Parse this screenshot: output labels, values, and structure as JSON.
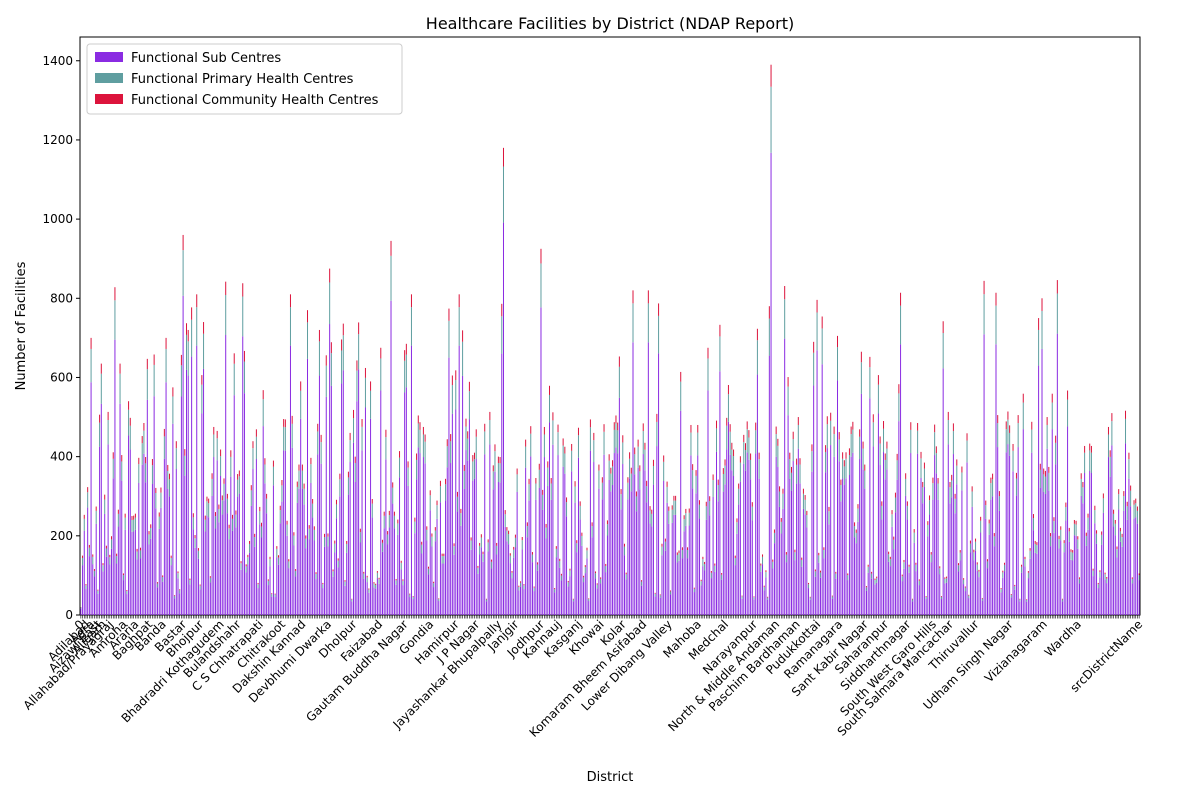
{
  "chart_data": {
    "type": "bar",
    "stacked": true,
    "title": "Healthcare Facilities by District (NDAP Report)",
    "xlabel": "District",
    "ylabel": "Number of Facilities",
    "ylim": [
      0,
      1460
    ],
    "yticks": [
      0,
      200,
      400,
      600,
      800,
      1000,
      1200,
      1400
    ],
    "grid": false,
    "legend_position": "top-left",
    "colors": {
      "sub_centres": "#8A2BE2",
      "phc": "#5F9EA0",
      "chc": "#DC143C"
    },
    "series": [
      {
        "name": "Functional Sub Centres",
        "color": "#8A2BE2"
      },
      {
        "name": "Functional Primary Health Centres",
        "color": "#5F9EA0"
      },
      {
        "name": "Functional Community Health Centres",
        "color": "#DC143C"
      }
    ],
    "category_count": 622,
    "visible_tick_labels": [
      {
        "index": 0,
        "label": "0"
      },
      {
        "index": 3,
        "label": "Adilabad"
      },
      {
        "index": 6,
        "label": "Agra"
      },
      {
        "index": 10,
        "label": "Aizawl East"
      },
      {
        "index": 13,
        "label": "Aligarh"
      },
      {
        "index": 17,
        "label": "Allahabad/Prayagraj"
      },
      {
        "index": 25,
        "label": "Amroha"
      },
      {
        "index": 32,
        "label": "Araria"
      },
      {
        "index": 40,
        "label": "Baghpat"
      },
      {
        "index": 48,
        "label": "Banda"
      },
      {
        "index": 60,
        "label": "Bastar"
      },
      {
        "index": 70,
        "label": "Bhojpur"
      },
      {
        "index": 82,
        "label": "Bhadradri Kothagudem"
      },
      {
        "index": 92,
        "label": "Bulandshahr"
      },
      {
        "index": 105,
        "label": "C S Chhatrapati"
      },
      {
        "index": 118,
        "label": "Chitrakoot"
      },
      {
        "index": 130,
        "label": "Dakshin Kannad"
      },
      {
        "index": 145,
        "label": "Devbhumi Dwarka"
      },
      {
        "index": 160,
        "label": "Dholpur"
      },
      {
        "index": 175,
        "label": "Faizabad"
      },
      {
        "index": 190,
        "label": "Gautam Buddha Nagar"
      },
      {
        "index": 205,
        "label": "Gondia"
      },
      {
        "index": 220,
        "label": "Hamirpur"
      },
      {
        "index": 232,
        "label": "J P Nagar"
      },
      {
        "index": 245,
        "label": "Jayashankar Bhupalpally"
      },
      {
        "index": 255,
        "label": "Janjgir"
      },
      {
        "index": 270,
        "label": "Jodhpur"
      },
      {
        "index": 280,
        "label": "Kannauj"
      },
      {
        "index": 292,
        "label": "Kasganj"
      },
      {
        "index": 305,
        "label": "Khowai"
      },
      {
        "index": 318,
        "label": "Kolar"
      },
      {
        "index": 330,
        "label": "Komaram Bheem Asifabad"
      },
      {
        "index": 345,
        "label": "Lower Dibang Valley"
      },
      {
        "index": 362,
        "label": "Mahoba"
      },
      {
        "index": 378,
        "label": "Medchal"
      },
      {
        "index": 395,
        "label": "Narayanpur"
      },
      {
        "index": 408,
        "label": "North & Middle Andaman"
      },
      {
        "index": 420,
        "label": "Paschim Bardhaman"
      },
      {
        "index": 432,
        "label": "Pudukkottai"
      },
      {
        "index": 445,
        "label": "Ramanagara"
      },
      {
        "index": 460,
        "label": "Sant Kabir Nagar"
      },
      {
        "index": 472,
        "label": "Saharanpur"
      },
      {
        "index": 485,
        "label": "Siddharthnagar"
      },
      {
        "index": 500,
        "label": "South West Garo Hills"
      },
      {
        "index": 510,
        "label": "South Salmara Mancachar"
      },
      {
        "index": 525,
        "label": "Thiruvallur"
      },
      {
        "index": 545,
        "label": "Udham Singh Nagar"
      },
      {
        "index": 565,
        "label": "Vizianagaram"
      },
      {
        "index": 585,
        "label": "Wardha"
      },
      {
        "index": 621,
        "label": "srcDistrictName"
      }
    ],
    "stack_totals_sample": [
      150,
      690,
      840,
      830,
      720,
      960,
      810,
      740,
      520,
      440,
      810,
      920,
      1180,
      950,
      920,
      1390,
      780,
      710,
      820,
      580,
      640,
      670
    ]
  }
}
